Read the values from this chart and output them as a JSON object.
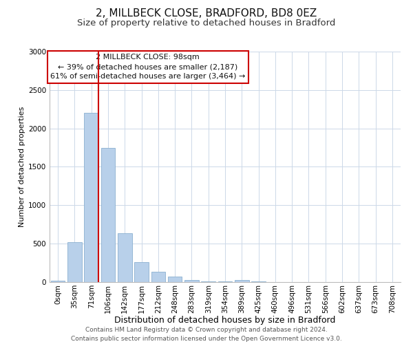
{
  "title": "2, MILLBECK CLOSE, BRADFORD, BD8 0EZ",
  "subtitle": "Size of property relative to detached houses in Bradford",
  "xlabel": "Distribution of detached houses by size in Bradford",
  "ylabel": "Number of detached properties",
  "bar_labels": [
    "0sqm",
    "35sqm",
    "71sqm",
    "106sqm",
    "142sqm",
    "177sqm",
    "212sqm",
    "248sqm",
    "283sqm",
    "319sqm",
    "354sqm",
    "389sqm",
    "425sqm",
    "460sqm",
    "496sqm",
    "531sqm",
    "566sqm",
    "602sqm",
    "637sqm",
    "673sqm",
    "708sqm"
  ],
  "bar_values": [
    20,
    520,
    2200,
    1750,
    640,
    260,
    130,
    70,
    30,
    10,
    5,
    30,
    5,
    2,
    1,
    0,
    0,
    0,
    0,
    0,
    0
  ],
  "bar_color": "#b8d0ea",
  "bar_edge_color": "#8ab0d0",
  "vline_color": "#cc0000",
  "ylim": [
    0,
    3000
  ],
  "annotation_text": "2 MILLBECK CLOSE: 98sqm\n← 39% of detached houses are smaller (2,187)\n61% of semi-detached houses are larger (3,464) →",
  "annotation_box_edgecolor": "#cc0000",
  "annotation_box_facecolor": "#ffffff",
  "footer_line1": "Contains HM Land Registry data © Crown copyright and database right 2024.",
  "footer_line2": "Contains public sector information licensed under the Open Government Licence v3.0.",
  "title_fontsize": 11,
  "subtitle_fontsize": 9.5,
  "xlabel_fontsize": 9,
  "ylabel_fontsize": 8,
  "tick_fontsize": 7.5,
  "annotation_fontsize": 8,
  "footer_fontsize": 6.5,
  "background_color": "#ffffff",
  "grid_color": "#ccd8e8",
  "fig_width": 6.0,
  "fig_height": 5.0,
  "dpi": 100
}
